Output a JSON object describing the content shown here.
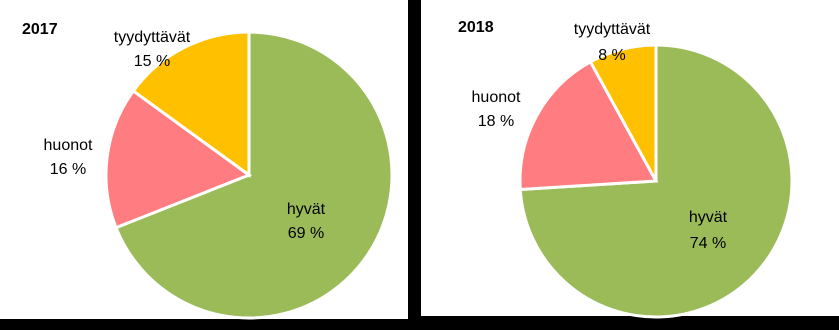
{
  "chart_data": [
    {
      "type": "pie",
      "title": "2017",
      "categories": [
        "hyvät",
        "huonot",
        "tyydyttävät"
      ],
      "values": [
        69,
        16,
        15
      ],
      "value_labels": [
        "69 %",
        "16 %",
        "15 %"
      ],
      "colors": [
        "#9bbb59",
        "#ff7c80",
        "#ffc000"
      ]
    },
    {
      "type": "pie",
      "title": "2018",
      "categories": [
        "hyvät",
        "huonot",
        "tyydyttävät"
      ],
      "values": [
        74,
        18,
        8
      ],
      "value_labels": [
        "74 %",
        "18 %",
        "8 %"
      ],
      "colors": [
        "#9bbb59",
        "#ff7c80",
        "#ffc000"
      ]
    }
  ]
}
